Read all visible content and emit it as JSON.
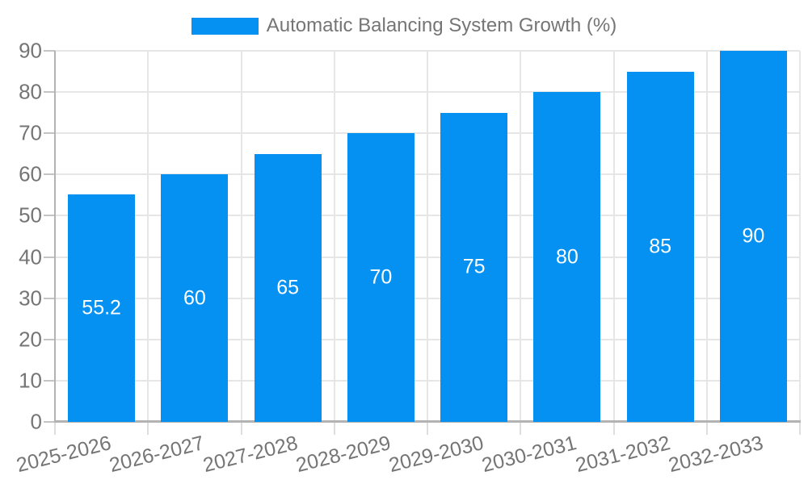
{
  "legend": {
    "label": "Automatic Balancing System Growth (%)"
  },
  "colors": {
    "bar": "#0591F2",
    "grid": "#E6E6E6",
    "axis": "#B3B3B3",
    "tick_text": "#757575",
    "value_label_text": "#FFFFFF",
    "background": "#FFFFFF"
  },
  "chart_data": {
    "type": "bar",
    "title": "",
    "xlabel": "",
    "ylabel": "",
    "series_name": "Automatic Balancing System Growth (%)",
    "categories": [
      "2025-2026",
      "2026-2027",
      "2027-2028",
      "2028-2029",
      "2029-2030",
      "2030-2031",
      "2031-2032",
      "2032-2033"
    ],
    "values": [
      55.2,
      60,
      65,
      70,
      75,
      80,
      85,
      90
    ],
    "value_labels": [
      "55.2",
      "60",
      "65",
      "70",
      "75",
      "80",
      "85",
      "90"
    ],
    "ylim": [
      0,
      90
    ],
    "yticks": [
      0,
      10,
      20,
      30,
      40,
      50,
      60,
      70,
      80,
      90
    ],
    "grid": true,
    "legend_position": "top",
    "x_label_rotation_deg": -14,
    "value_label_position": "center-inside"
  }
}
